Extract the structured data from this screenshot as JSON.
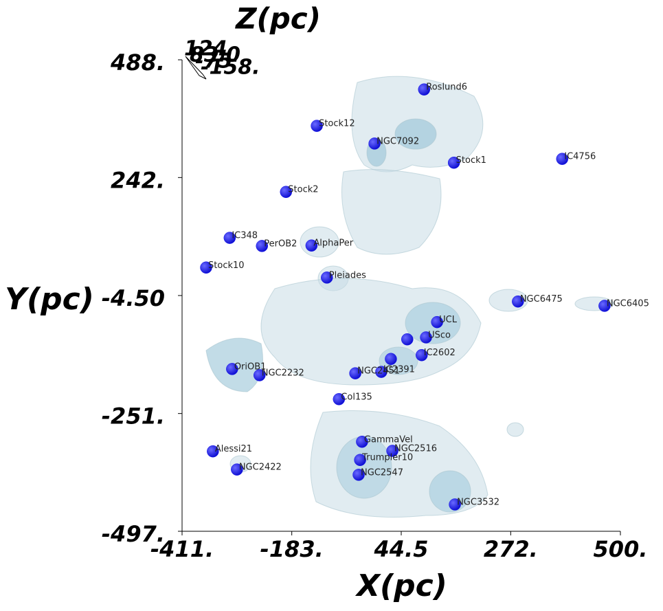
{
  "chart_data": {
    "type": "scatter",
    "xlabel": "X(pc)",
    "ylabel": "Y(pc)",
    "zlabel": "Z(pc)",
    "xlim": [
      -411,
      500
    ],
    "xticks": [
      {
        "value": -411,
        "label": "-411."
      },
      {
        "value": -183,
        "label": "-183."
      },
      {
        "value": 44.5,
        "label": "44.5"
      },
      {
        "value": 272,
        "label": "272."
      },
      {
        "value": 500,
        "label": "500."
      }
    ],
    "ylim": [
      -497,
      488
    ],
    "yticks": [
      {
        "value": 488,
        "label": "488."
      },
      {
        "value": 242,
        "label": "242."
      },
      {
        "value": -4.5,
        "label": "-4.50"
      },
      {
        "value": -251,
        "label": "-251."
      },
      {
        "value": -497,
        "label": "-497."
      }
    ],
    "zticks": [
      {
        "value": 124,
        "label": "124"
      },
      {
        "value": 83,
        "label": "83.0"
      },
      {
        "value": -75,
        "label": "-75"
      },
      {
        "value": -158,
        "label": "-158."
      }
    ],
    "series": [
      {
        "color": "#1010ee",
        "point_labels": [
          "Roslund6",
          "Stock12",
          "NGC7092",
          "Stock1",
          "IC4756",
          "Stock2",
          "IC348",
          "PerOB2",
          "AlphaPer",
          "Stock10",
          "Pleiades",
          "NGC6475",
          "NGC6405",
          "UCL",
          "USco",
          null,
          "IC2602",
          null,
          "IC2391",
          "NGC2451",
          "OriOB1",
          "NGC2232",
          "Col135",
          "GammaVel",
          "NGC2516",
          "Alessi21",
          "Trumpler10",
          "NGC2422",
          "NGC2547",
          "NGC3532"
        ],
        "x": [
          92,
          -131,
          -11,
          154,
          379,
          -195,
          -312,
          -245,
          -142,
          -361,
          -110,
          287,
          467,
          119,
          96,
          57,
          87,
          23,
          3,
          -51,
          -307,
          -250,
          -85,
          -37,
          26,
          -347,
          -41,
          -297,
          -44,
          156
        ],
        "values": [
          426,
          350,
          313,
          273,
          281,
          212,
          116,
          99,
          100,
          54,
          33,
          -17,
          -26,
          -60,
          -92,
          -96,
          -129,
          -137,
          -164,
          -167,
          -158,
          -171,
          -221,
          -310,
          -329,
          -330,
          -348,
          -368,
          -379,
          -441
        ]
      }
    ]
  }
}
